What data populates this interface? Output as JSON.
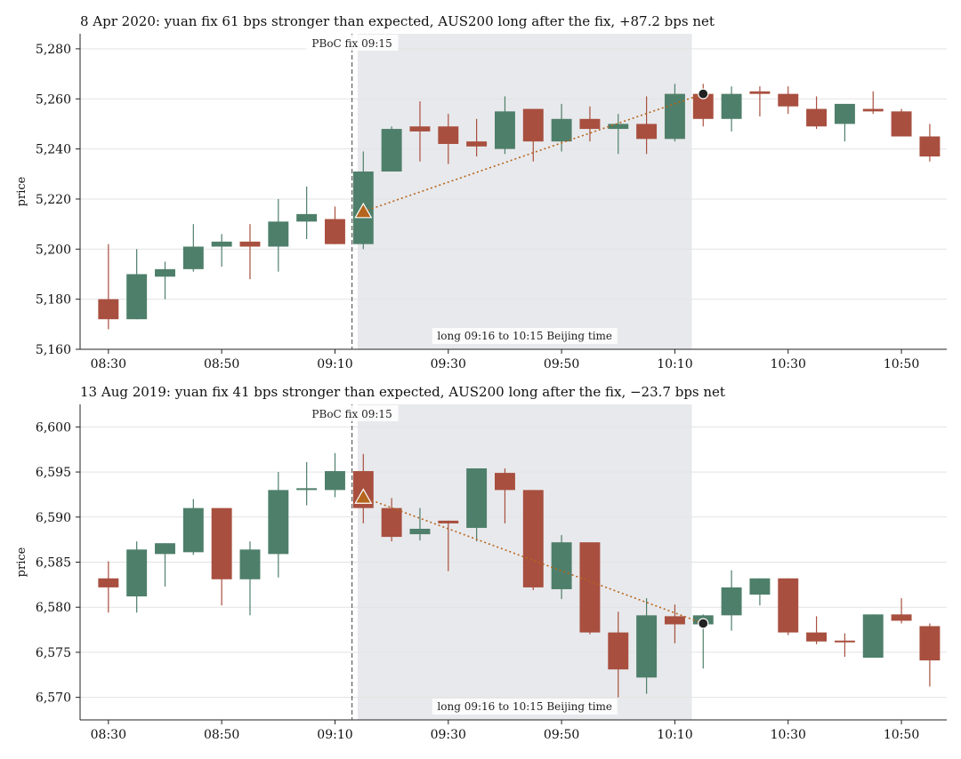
{
  "colors": {
    "up": "#4e7f6a",
    "down": "#a84f3f",
    "window": "#e8e9ec",
    "trade": "#b5651d",
    "fix_line": "#666666"
  },
  "chart_data": [
    {
      "type": "candlestick",
      "title": "8 Apr 2020: yuan fix 61 bps stronger than expected, AUS200 long after the fix, +87.2 bps net",
      "ylabel": "price",
      "ylim": [
        5160,
        5286
      ],
      "yticks": [
        5160,
        5180,
        5200,
        5220,
        5240,
        5260,
        5280
      ],
      "ytick_labels": [
        "5,160",
        "5,180",
        "5,200",
        "5,220",
        "5,240",
        "5,260",
        "5,280"
      ],
      "xlim": [
        "08:25",
        "10:58"
      ],
      "xticks": [
        "08:30",
        "08:50",
        "09:10",
        "09:30",
        "09:50",
        "10:10",
        "10:30",
        "10:50"
      ],
      "fix_time": "09:13",
      "fix_label": "PBoC fix 09:15",
      "window": [
        "09:14",
        "10:13"
      ],
      "window_label": "long 09:16 to 10:15 Beijing time",
      "entry": {
        "time": "09:15",
        "price": 5215
      },
      "exit": {
        "time": "10:15",
        "price": 5262
      },
      "candles": [
        {
          "t": "08:30",
          "o": 5180,
          "h": 5202,
          "l": 5168,
          "c": 5172
        },
        {
          "t": "08:35",
          "o": 5172,
          "h": 5200,
          "l": 5172,
          "c": 5190
        },
        {
          "t": "08:40",
          "o": 5189,
          "h": 5195,
          "l": 5180,
          "c": 5192
        },
        {
          "t": "08:45",
          "o": 5192,
          "h": 5210,
          "l": 5191,
          "c": 5201
        },
        {
          "t": "08:50",
          "o": 5201,
          "h": 5206,
          "l": 5193,
          "c": 5203
        },
        {
          "t": "08:55",
          "o": 5203,
          "h": 5210,
          "l": 5188,
          "c": 5201
        },
        {
          "t": "09:00",
          "o": 5201,
          "h": 5220,
          "l": 5191,
          "c": 5211
        },
        {
          "t": "09:05",
          "o": 5211,
          "h": 5225,
          "l": 5204,
          "c": 5214
        },
        {
          "t": "09:10",
          "o": 5212,
          "h": 5217,
          "l": 5202,
          "c": 5202
        },
        {
          "t": "09:15",
          "o": 5202,
          "h": 5239,
          "l": 5200,
          "c": 5231
        },
        {
          "t": "09:20",
          "o": 5231,
          "h": 5249,
          "l": 5231,
          "c": 5248
        },
        {
          "t": "09:25",
          "o": 5249,
          "h": 5259,
          "l": 5235,
          "c": 5247
        },
        {
          "t": "09:30",
          "o": 5249,
          "h": 5254,
          "l": 5234,
          "c": 5242
        },
        {
          "t": "09:35",
          "o": 5243,
          "h": 5252,
          "l": 5237,
          "c": 5241
        },
        {
          "t": "09:40",
          "o": 5240,
          "h": 5261,
          "l": 5238,
          "c": 5255
        },
        {
          "t": "09:45",
          "o": 5256,
          "h": 5256,
          "l": 5235,
          "c": 5243
        },
        {
          "t": "09:50",
          "o": 5243,
          "h": 5258,
          "l": 5239,
          "c": 5252
        },
        {
          "t": "09:55",
          "o": 5252,
          "h": 5257,
          "l": 5243,
          "c": 5248
        },
        {
          "t": "10:00",
          "o": 5248,
          "h": 5254,
          "l": 5238,
          "c": 5250
        },
        {
          "t": "10:05",
          "o": 5250,
          "h": 5261,
          "l": 5238,
          "c": 5244
        },
        {
          "t": "10:10",
          "o": 5244,
          "h": 5266,
          "l": 5243,
          "c": 5262
        },
        {
          "t": "10:15",
          "o": 5262,
          "h": 5266,
          "l": 5249,
          "c": 5252
        },
        {
          "t": "10:20",
          "o": 5252,
          "h": 5265,
          "l": 5247,
          "c": 5262
        },
        {
          "t": "10:25",
          "o": 5263,
          "h": 5265,
          "l": 5253,
          "c": 5262
        },
        {
          "t": "10:30",
          "o": 5262,
          "h": 5265,
          "l": 5254,
          "c": 5257
        },
        {
          "t": "10:35",
          "o": 5256,
          "h": 5261,
          "l": 5248,
          "c": 5249
        },
        {
          "t": "10:40",
          "o": 5250,
          "h": 5258,
          "l": 5243,
          "c": 5258
        },
        {
          "t": "10:45",
          "o": 5256,
          "h": 5263,
          "l": 5254,
          "c": 5255
        },
        {
          "t": "10:50",
          "o": 5255,
          "h": 5256,
          "l": 5245,
          "c": 5245
        },
        {
          "t": "10:55",
          "o": 5245,
          "h": 5250,
          "l": 5235,
          "c": 5237
        }
      ]
    },
    {
      "type": "candlestick",
      "title": "13 Aug 2019: yuan fix 41 bps stronger than expected, AUS200 long after the fix, −23.7 bps net",
      "ylabel": "price",
      "ylim": [
        6567.5,
        6602.5
      ],
      "yticks": [
        6570,
        6575,
        6580,
        6585,
        6590,
        6595,
        6600
      ],
      "ytick_labels": [
        "6,570",
        "6,575",
        "6,580",
        "6,585",
        "6,590",
        "6,595",
        "6,600"
      ],
      "xlim": [
        "08:25",
        "10:58"
      ],
      "xticks": [
        "08:30",
        "08:50",
        "09:10",
        "09:30",
        "09:50",
        "10:10",
        "10:30",
        "10:50"
      ],
      "fix_time": "09:13",
      "fix_label": "PBoC fix 09:15",
      "window": [
        "09:14",
        "10:13"
      ],
      "window_label": "long 09:16 to 10:15 Beijing time",
      "entry": {
        "time": "09:15",
        "price": 6592.2
      },
      "exit": {
        "time": "10:15",
        "price": 6578.2
      },
      "candles": [
        {
          "t": "08:30",
          "o": 6583.2,
          "h": 6585.1,
          "l": 6579.4,
          "c": 6582.2
        },
        {
          "t": "08:35",
          "o": 6581.2,
          "h": 6587.3,
          "l": 6579.4,
          "c": 6586.4
        },
        {
          "t": "08:40",
          "o": 6585.9,
          "h": 6587.1,
          "l": 6582.3,
          "c": 6587.1
        },
        {
          "t": "08:45",
          "o": 6586.1,
          "h": 6592.0,
          "l": 6585.8,
          "c": 6591.0
        },
        {
          "t": "08:50",
          "o": 6591.0,
          "h": 6591.0,
          "l": 6580.2,
          "c": 6583.1
        },
        {
          "t": "08:55",
          "o": 6583.1,
          "h": 6587.3,
          "l": 6579.1,
          "c": 6586.4
        },
        {
          "t": "09:00",
          "o": 6585.9,
          "h": 6595.0,
          "l": 6583.3,
          "c": 6593.0
        },
        {
          "t": "09:05",
          "o": 6593.0,
          "h": 6596.1,
          "l": 6591.3,
          "c": 6593.2
        },
        {
          "t": "09:10",
          "o": 6593.0,
          "h": 6597.1,
          "l": 6592.2,
          "c": 6595.1
        },
        {
          "t": "09:15",
          "o": 6595.1,
          "h": 6597.0,
          "l": 6589.3,
          "c": 6591.0
        },
        {
          "t": "09:20",
          "o": 6591.0,
          "h": 6592.1,
          "l": 6587.3,
          "c": 6587.8
        },
        {
          "t": "09:25",
          "o": 6588.1,
          "h": 6591.0,
          "l": 6587.4,
          "c": 6588.7
        },
        {
          "t": "09:30",
          "o": 6589.6,
          "h": 6589.6,
          "l": 6584.0,
          "c": 6589.3
        },
        {
          "t": "09:35",
          "o": 6588.8,
          "h": 6595.4,
          "l": 6587.3,
          "c": 6595.4
        },
        {
          "t": "09:40",
          "o": 6594.9,
          "h": 6595.4,
          "l": 6589.3,
          "c": 6593.0
        },
        {
          "t": "09:45",
          "o": 6593.0,
          "h": 6593.0,
          "l": 6581.9,
          "c": 6582.2
        },
        {
          "t": "09:50",
          "o": 6582.0,
          "h": 6588.0,
          "l": 6580.9,
          "c": 6587.2
        },
        {
          "t": "09:55",
          "o": 6587.2,
          "h": 6587.2,
          "l": 6577.0,
          "c": 6577.2
        },
        {
          "t": "10:00",
          "o": 6577.2,
          "h": 6579.5,
          "l": 6570.0,
          "c": 6573.1
        },
        {
          "t": "10:05",
          "o": 6572.2,
          "h": 6581.0,
          "l": 6570.4,
          "c": 6579.1
        },
        {
          "t": "10:10",
          "o": 6579.0,
          "h": 6580.3,
          "l": 6576.0,
          "c": 6578.1
        },
        {
          "t": "10:15",
          "o": 6578.1,
          "h": 6579.2,
          "l": 6573.2,
          "c": 6579.1
        },
        {
          "t": "10:20",
          "o": 6579.1,
          "h": 6584.1,
          "l": 6577.4,
          "c": 6582.2
        },
        {
          "t": "10:25",
          "o": 6581.4,
          "h": 6583.2,
          "l": 6580.2,
          "c": 6583.2
        },
        {
          "t": "10:30",
          "o": 6583.2,
          "h": 6583.2,
          "l": 6576.9,
          "c": 6577.2
        },
        {
          "t": "10:35",
          "o": 6577.2,
          "h": 6579.0,
          "l": 6575.9,
          "c": 6576.2
        },
        {
          "t": "10:40",
          "o": 6576.3,
          "h": 6577.1,
          "l": 6574.5,
          "c": 6576.1
        },
        {
          "t": "10:45",
          "o": 6574.4,
          "h": 6579.2,
          "l": 6574.4,
          "c": 6579.2
        },
        {
          "t": "10:50",
          "o": 6579.2,
          "h": 6581.0,
          "l": 6578.2,
          "c": 6578.5
        },
        {
          "t": "10:55",
          "o": 6577.9,
          "h": 6578.2,
          "l": 6571.2,
          "c": 6574.1
        }
      ]
    }
  ]
}
